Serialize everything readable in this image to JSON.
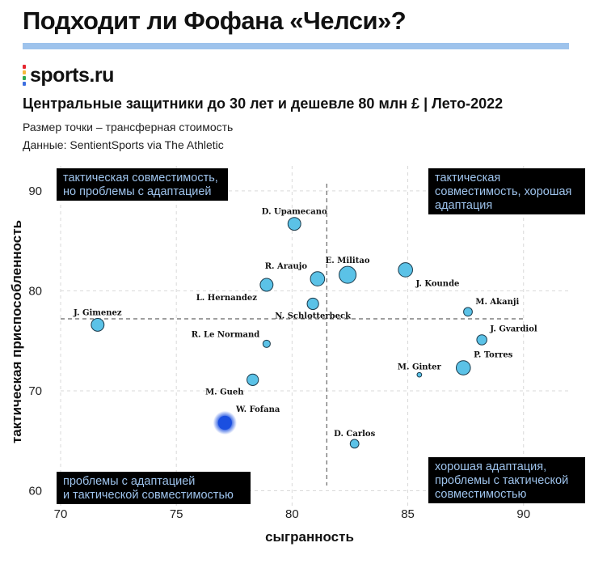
{
  "headline": "Подходит ли Фофана «Челси»?",
  "brand": {
    "name": "sports.ru",
    "bar_colors": [
      "#e5262f",
      "#f6b83c",
      "#2fa84f",
      "#3d6fe0"
    ]
  },
  "subtitle": "Центральные защитники до 30 лет и дешевле 80 млн £ | Лето-2022",
  "notes": {
    "size_note": "Размер точки – трансферная стоимость",
    "source": "Данные: SentientSports via The Athletic"
  },
  "colors": {
    "accent_rule": "#9ec3ec",
    "point_fill": "#5bc2e7",
    "highlight_fill": "#1a4fe0",
    "quadrant_box_bg": "#000000",
    "quadrant_box_text": "#9ec3ec"
  },
  "chart_data": {
    "type": "scatter",
    "xlabel": "сыгранность",
    "ylabel": "тактическая приспособленность",
    "xlim": [
      70,
      92
    ],
    "ylim": [
      58.5,
      92.5
    ],
    "xticks": [
      70,
      75,
      80,
      85,
      90
    ],
    "yticks": [
      60,
      70,
      80,
      90
    ],
    "grid": true,
    "reference_lines": {
      "x": 81.5,
      "y": 77.2
    },
    "size_legend": "трансферная стоимость",
    "points": [
      {
        "name": "D. Upamecano",
        "x": 80.1,
        "y": 86.7,
        "size": 7,
        "label_pos": "top"
      },
      {
        "name": "E. Militao",
        "x": 82.4,
        "y": 81.6,
        "size": 10,
        "label_pos": "top"
      },
      {
        "name": "J. Kounde",
        "x": 84.9,
        "y": 82.1,
        "size": 8,
        "label_pos": "below-right"
      },
      {
        "name": "R. Araujo",
        "x": 81.1,
        "y": 81.2,
        "size": 8,
        "label_pos": "top-left"
      },
      {
        "name": "L. Hernandez",
        "x": 78.9,
        "y": 80.6,
        "size": 7,
        "label_pos": "below-left"
      },
      {
        "name": "N. Schlotterbeck",
        "x": 80.9,
        "y": 78.7,
        "size": 6,
        "label_pos": "below"
      },
      {
        "name": "J. Gimenez",
        "x": 71.6,
        "y": 76.6,
        "size": 7,
        "label_pos": "top"
      },
      {
        "name": "M. Akanji",
        "x": 87.6,
        "y": 77.9,
        "size": 4,
        "label_pos": "top-right"
      },
      {
        "name": "J. Gvardiol",
        "x": 88.2,
        "y": 75.1,
        "size": 5,
        "label_pos": "top-right"
      },
      {
        "name": "R. Le Normand",
        "x": 78.9,
        "y": 74.7,
        "size": 3,
        "label_pos": "top-left"
      },
      {
        "name": "P. Torres",
        "x": 87.4,
        "y": 72.3,
        "size": 8,
        "label_pos": "top-right"
      },
      {
        "name": "M. Ginter",
        "x": 85.5,
        "y": 71.6,
        "size": 1,
        "label_pos": "top"
      },
      {
        "name": "M. Gueh",
        "x": 78.3,
        "y": 71.1,
        "size": 6,
        "label_pos": "below-left"
      },
      {
        "name": "W. Fofana",
        "x": 77.1,
        "y": 66.8,
        "size": 9,
        "label_pos": "top-right",
        "highlight": true
      },
      {
        "name": "D. Carlos",
        "x": 82.7,
        "y": 64.7,
        "size": 4,
        "label_pos": "top"
      }
    ],
    "quadrant_annotations": {
      "top_left": [
        "тактическая совместимость,",
        "но проблемы с адаптацией"
      ],
      "top_right": [
        "тактическая",
        "совместимость, хорошая",
        "адаптация"
      ],
      "bottom_left": [
        "проблемы с адаптацией",
        "и тактической совместимостью"
      ],
      "bottom_right": [
        "хорошая адаптация,",
        "проблемы с тактической",
        "совместимостью"
      ]
    }
  }
}
